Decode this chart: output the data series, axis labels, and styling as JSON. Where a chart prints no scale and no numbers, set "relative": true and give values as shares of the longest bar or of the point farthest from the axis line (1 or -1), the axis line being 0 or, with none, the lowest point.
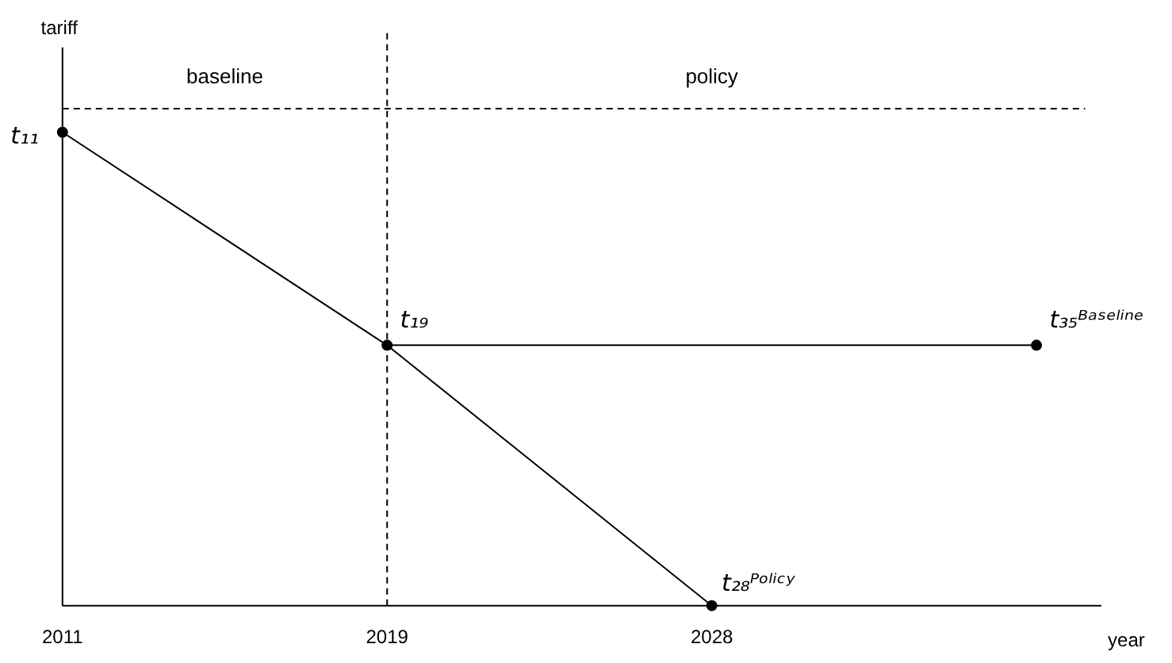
{
  "chart_data": {
    "type": "line",
    "relative": true,
    "xlabel": "year",
    "ylabel": "tariff",
    "categories": [
      "2011",
      "2019",
      "2028",
      null
    ],
    "series": [
      {
        "color": "#000000",
        "values": [
          1,
          0.55,
          0.55,
          0.55
        ]
      },
      {
        "color": "#000000",
        "values": [
          null,
          0.55,
          0,
          null
        ]
      },
      {
        "type": "scatter",
        "color": "#000000",
        "marker": "circle",
        "values": [
          1,
          0.55,
          0,
          0.55
        ]
      }
    ],
    "ref_lines": [
      {
        "axis": "x",
        "value": "2019",
        "line_style": "dashed",
        "color": "#000000"
      },
      {
        "axis": "y",
        "value": 1.05,
        "line_style": "dashed",
        "color": "#000000"
      }
    ],
    "annotations": [
      "baseline",
      "policy",
      {
        "text": "t₁₁",
        "x": "2011",
        "y": 1
      },
      {
        "text": "t₁₉",
        "x": "2019",
        "y": 0.55
      },
      {
        "text": "t₂₈ᴾᵒˡⁱᶜʸ",
        "x": "2028",
        "y": 0
      },
      "t₃₅ᴮᵃˢᵉˡⁱⁿᵉ"
    ],
    "marker": "none"
  }
}
